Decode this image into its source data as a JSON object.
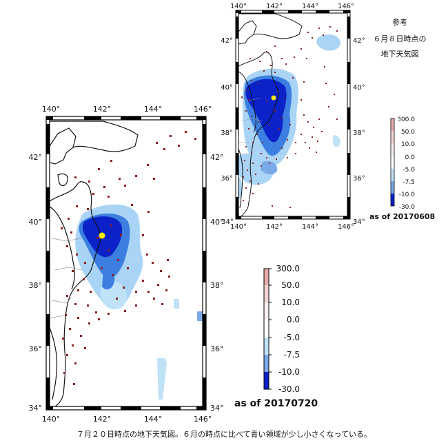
{
  "main_map": {
    "lon_ticks": [
      "140°",
      "142°",
      "144°",
      "146°"
    ],
    "lat_ticks": [
      "42°",
      "40°",
      "38°",
      "36°",
      "34°"
    ],
    "date_label": "as of 20170720"
  },
  "inset_map": {
    "lon_ticks": [
      "140°",
      "142°",
      "144°",
      "146°"
    ],
    "lat_ticks": [
      "42°",
      "40°",
      "38°",
      "36°",
      "34°"
    ],
    "date_label": "as of 20170608"
  },
  "main_legend": {
    "ticks": [
      "300.0",
      "50.0",
      "10.0",
      "0.0",
      "-5.0",
      "-7.5",
      "-10.0",
      "-30.0"
    ],
    "colors": [
      "#e9aaaa",
      "#f4d3d3",
      "#fbeeee",
      "#ffffff",
      "#bfe2f6",
      "#8ec4ef",
      "#3d7fe0",
      "#0b22c8"
    ]
  },
  "inset_legend": {
    "ticks": [
      "300.0",
      "50.0",
      "10.0",
      "0.0",
      "-5.0",
      "-7.5",
      "-10.0",
      "-30.0"
    ],
    "colors": [
      "#e9aaaa",
      "#f4d3d3",
      "#fbeeee",
      "#ffffff",
      "#bfe2f6",
      "#8ec4ef",
      "#3d7fe0",
      "#0b22c8"
    ]
  },
  "reference": {
    "line1": "参考",
    "line2": "６月８日時点の",
    "line3": "地下天気図"
  },
  "caption": "７月２０日時点の地下天気図。６月の時点に比べて青い領域が少し小さくなっている。",
  "colors": {
    "strong_blue": "#0b22c8",
    "mid_blue": "#3d7fe0",
    "light_blue": "#a9d4f5",
    "station": "#8b1e1e",
    "marker": "#ffee00"
  }
}
